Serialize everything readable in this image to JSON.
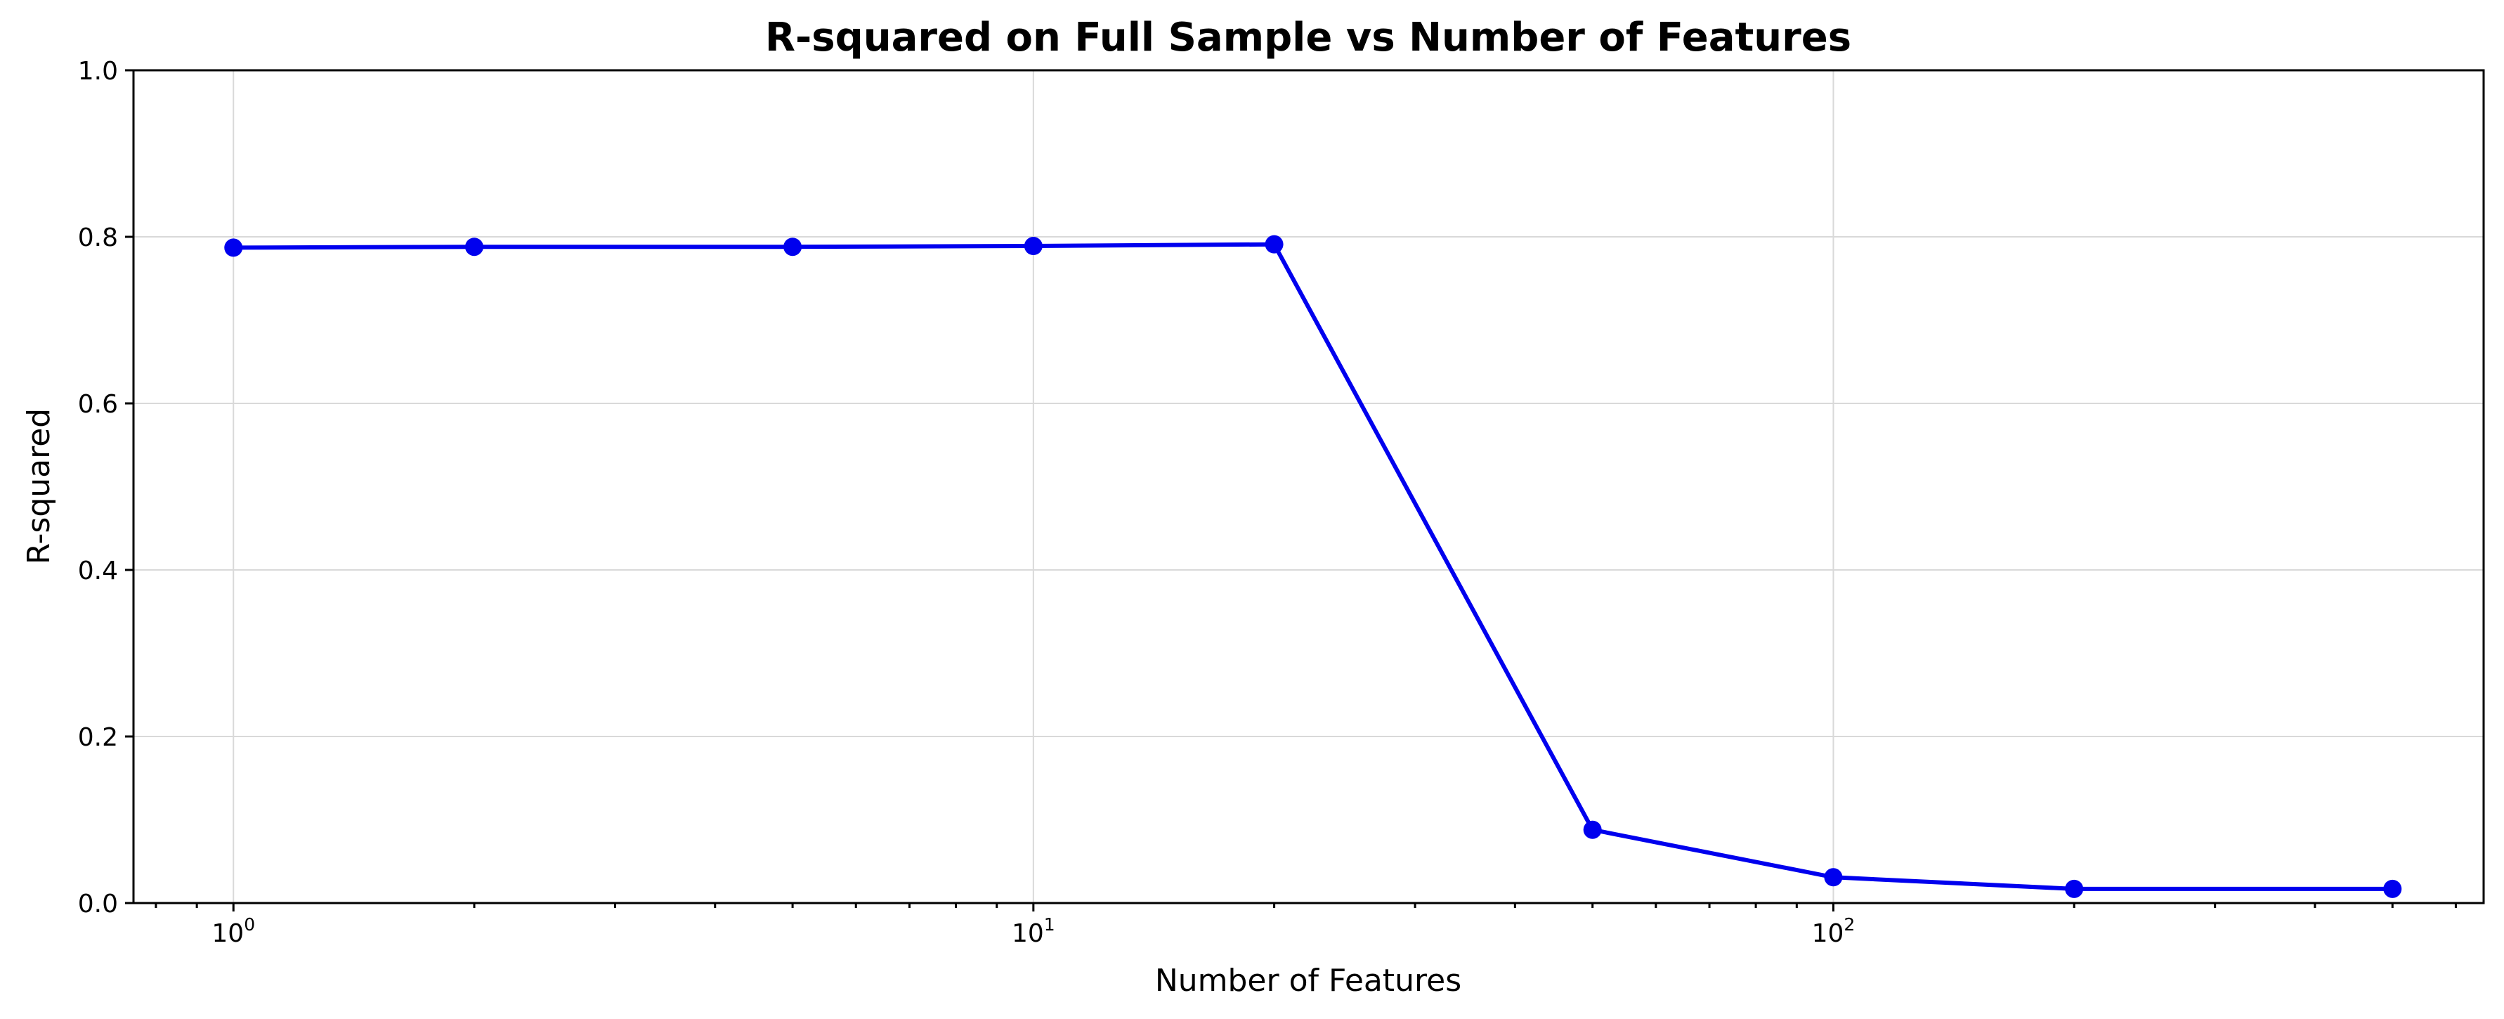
{
  "chart_data": {
    "type": "line",
    "title": "R-squared on Full Sample vs Number of Features",
    "xlabel": "Number of Features",
    "ylabel": "R-squared",
    "x_scale": "log",
    "x_range": [
      0.75,
      650
    ],
    "ylim": [
      0,
      1.0
    ],
    "grid": true,
    "x_major_ticks": [
      {
        "value": 1,
        "base": "10",
        "exp": "0"
      },
      {
        "value": 10,
        "base": "10",
        "exp": "1"
      },
      {
        "value": 100,
        "base": "10",
        "exp": "2"
      }
    ],
    "x_minor_ticks": [
      0.8,
      0.9,
      2,
      3,
      4,
      5,
      6,
      7,
      8,
      9,
      20,
      30,
      40,
      50,
      60,
      70,
      80,
      90,
      200,
      300,
      400,
      500,
      600
    ],
    "y_ticks": [
      {
        "value": 0.0,
        "label": "0.0"
      },
      {
        "value": 0.2,
        "label": "0.2"
      },
      {
        "value": 0.4,
        "label": "0.4"
      },
      {
        "value": 0.6,
        "label": "0.6"
      },
      {
        "value": 0.8,
        "label": "0.8"
      },
      {
        "value": 1.0,
        "label": "1.0"
      }
    ],
    "series": [
      {
        "color": "#0000ee",
        "marker": "circle",
        "x": [
          1,
          2,
          5,
          10,
          20,
          50,
          100,
          200,
          500
        ],
        "y": [
          0.787,
          0.788,
          0.788,
          0.789,
          0.791,
          0.088,
          0.031,
          0.017,
          0.017
        ]
      }
    ]
  }
}
